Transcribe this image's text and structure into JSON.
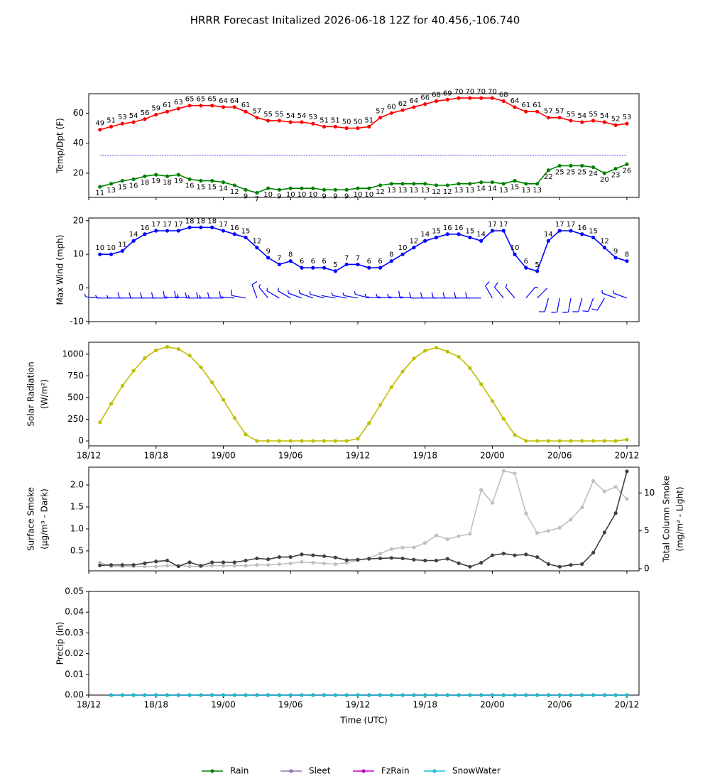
{
  "title": "HRRR Forecast Initalized 2026-06-18 12Z for 40.456,-106.740",
  "x_axis": {
    "label": "Time (UTC)",
    "x": [
      1,
      2,
      3,
      4,
      5,
      6,
      7,
      8,
      9,
      10,
      11,
      12,
      13,
      14,
      15,
      16,
      17,
      18,
      19,
      20,
      21,
      22,
      23,
      24,
      25,
      26,
      27,
      28,
      29,
      30,
      31,
      32,
      33,
      34,
      35,
      36,
      37,
      38,
      39,
      40,
      41,
      42,
      43,
      44,
      45,
      46,
      47,
      48
    ],
    "xlim": [
      0,
      49.08
    ],
    "xticks": [
      {
        "value": 0,
        "label": "18/12"
      },
      {
        "value": 6,
        "label": "18/18"
      },
      {
        "value": 12,
        "label": "19/00"
      },
      {
        "value": 18,
        "label": "19/06"
      },
      {
        "value": 24,
        "label": "19/12"
      },
      {
        "value": 30,
        "label": "19/18"
      },
      {
        "value": 36,
        "label": "20/00"
      },
      {
        "value": 42,
        "label": "20/06"
      },
      {
        "value": 48,
        "label": "20/12"
      }
    ]
  },
  "chart_data": [
    {
      "type": "line",
      "ylabel": "Temp/Dpt (F)",
      "ylim": [
        3.95,
        72.9
      ],
      "yticks": [
        20,
        40,
        60
      ],
      "reference_line": {
        "value": 32,
        "color": "#0000ff"
      },
      "series": [
        {
          "color": "#ff0000",
          "label_position": "above",
          "values": [
            49,
            51,
            53,
            54,
            56,
            59,
            61,
            63,
            65,
            65,
            65,
            64,
            64,
            61,
            57,
            55,
            55,
            54,
            54,
            53,
            51,
            51,
            50,
            50,
            51,
            57,
            60,
            62,
            64,
            66,
            68,
            69,
            70,
            70,
            70,
            70,
            68,
            64,
            61,
            61,
            57,
            57,
            55,
            54,
            55,
            54,
            52,
            53
          ]
        },
        {
          "color": "#008000",
          "label_position": "below",
          "values": [
            11,
            13,
            15,
            16,
            18,
            19,
            18,
            19,
            16,
            15,
            15,
            14,
            12,
            9,
            7,
            10,
            9,
            10,
            10,
            10,
            9,
            9,
            9,
            10,
            10,
            12,
            13,
            13,
            13,
            13,
            12,
            12,
            13,
            13,
            14,
            14,
            13,
            15,
            13,
            13,
            22,
            25,
            25,
            25,
            24,
            20,
            23,
            26
          ]
        }
      ]
    },
    {
      "type": "line",
      "ylabel": "Max Wind (mph)",
      "ylim": [
        -10,
        20.8
      ],
      "yticks": [
        -10,
        0,
        10,
        20
      ],
      "barb_level": -3,
      "series": [
        {
          "color": "#0000ff",
          "label_position": "above",
          "values": [
            10,
            10,
            11,
            14,
            16,
            17,
            17,
            17,
            18,
            18,
            18,
            17,
            16,
            15,
            12,
            9,
            7,
            8,
            6,
            6,
            6,
            5,
            7,
            7,
            6,
            6,
            8,
            10,
            12,
            14,
            15,
            16,
            16,
            15,
            14,
            17,
            17,
            10,
            6,
            5,
            14,
            17,
            17,
            16,
            15,
            12,
            9,
            8
          ],
          "barb_directions": [
            275,
            270,
            270,
            270,
            270,
            270,
            270,
            275,
            275,
            270,
            270,
            270,
            275,
            280,
            340,
            320,
            300,
            300,
            290,
            290,
            285,
            280,
            280,
            280,
            285,
            275,
            275,
            275,
            275,
            270,
            270,
            270,
            270,
            270,
            270,
            330,
            320,
            320,
            40,
            45,
            195,
            190,
            190,
            195,
            200,
            210,
            290,
            290
          ]
        }
      ]
    },
    {
      "type": "line",
      "ylabel": [
        "Solar Radiation",
        "(W/m²)"
      ],
      "ylim": [
        -57,
        1138
      ],
      "yticks": [
        0,
        250,
        500,
        750,
        1000
      ],
      "xtick_labels": true,
      "series": [
        {
          "color": "#bfbf00",
          "values": [
            215,
            430,
            635,
            810,
            955,
            1045,
            1085,
            1060,
            985,
            850,
            675,
            475,
            265,
            75,
            0,
            0,
            0,
            0,
            0,
            0,
            0,
            0,
            0,
            25,
            205,
            415,
            620,
            800,
            950,
            1040,
            1075,
            1030,
            970,
            840,
            655,
            460,
            255,
            70,
            0,
            0,
            0,
            0,
            0,
            0,
            0,
            0,
            0,
            15
          ]
        }
      ]
    },
    {
      "type": "line",
      "ylabel": [
        "Surface Smoke",
        "(μg/m³ - Dark)"
      ],
      "y2label": [
        "Total Column Smoke",
        "(mg/m² - Light)"
      ],
      "ylim": [
        0.046,
        2.405
      ],
      "yticks": [
        0.5,
        {
          "value": 1.0,
          "label": "1.0"
        },
        1.5,
        {
          "value": 2.0,
          "label": "2.0"
        }
      ],
      "y2lim": [
        -0.28,
        13.4
      ],
      "y2ticks": [
        0,
        5,
        10
      ],
      "series": [
        {
          "color": "#c0c0c0",
          "axis": "y2",
          "values": [
            0.8,
            0.3,
            0.3,
            0.3,
            0.3,
            0.3,
            0.4,
            0.4,
            0.3,
            0.3,
            0.4,
            0.4,
            0.4,
            0.4,
            0.5,
            0.5,
            0.6,
            0.7,
            0.9,
            0.8,
            0.7,
            0.6,
            0.8,
            1.1,
            1.4,
            2.0,
            2.6,
            2.8,
            2.8,
            3.4,
            4.4,
            3.9,
            4.3,
            4.6,
            10.4,
            8.7,
            12.9,
            12.6,
            7.3,
            4.7,
            5.0,
            5.4,
            6.5,
            8.1,
            11.6,
            10.2,
            10.8,
            9.2
          ]
        },
        {
          "color": "#404040",
          "values": [
            0.17,
            0.18,
            0.18,
            0.18,
            0.22,
            0.26,
            0.28,
            0.15,
            0.24,
            0.16,
            0.24,
            0.24,
            0.24,
            0.28,
            0.33,
            0.31,
            0.36,
            0.36,
            0.42,
            0.4,
            0.38,
            0.35,
            0.29,
            0.3,
            0.32,
            0.33,
            0.34,
            0.33,
            0.3,
            0.28,
            0.28,
            0.32,
            0.22,
            0.14,
            0.23,
            0.4,
            0.44,
            0.4,
            0.42,
            0.36,
            0.2,
            0.14,
            0.18,
            0.2,
            0.46,
            0.92,
            1.36,
            2.31
          ]
        }
      ]
    },
    {
      "type": "line",
      "ylabel": "Precip (in)",
      "ylim": [
        0,
        0.05
      ],
      "xtick_labels": true,
      "xlabel": true,
      "legend": "lower center",
      "yticks": [
        {
          "value": 0,
          "label": "0.00"
        },
        {
          "value": 0.01,
          "label": "0.01"
        },
        {
          "value": 0.02,
          "label": "0.02"
        },
        {
          "value": 0.03,
          "label": "0.03"
        },
        {
          "value": 0.04,
          "label": "0.04"
        },
        {
          "value": 0.05,
          "label": "0.05"
        }
      ],
      "series": [
        {
          "name": "Rain",
          "color": "#008000",
          "values": [
            null,
            0,
            0,
            0,
            0,
            0,
            0,
            0,
            0,
            0,
            0,
            0,
            0,
            0,
            0,
            0,
            0,
            0,
            0,
            0,
            0,
            0,
            0,
            0,
            0,
            0,
            0,
            0,
            0,
            0,
            0,
            0,
            0,
            0,
            0,
            0,
            0,
            0,
            0,
            0,
            0,
            0,
            0,
            0,
            0,
            0,
            0,
            0
          ]
        },
        {
          "name": "Sleet",
          "color": "#8c75a8",
          "values": [
            null,
            0,
            0,
            0,
            0,
            0,
            0,
            0,
            0,
            0,
            0,
            0,
            0,
            0,
            0,
            0,
            0,
            0,
            0,
            0,
            0,
            0,
            0,
            0,
            0,
            0,
            0,
            0,
            0,
            0,
            0,
            0,
            0,
            0,
            0,
            0,
            0,
            0,
            0,
            0,
            0,
            0,
            0,
            0,
            0,
            0,
            0,
            0
          ]
        },
        {
          "name": "FzRain",
          "color": "#c000c0",
          "values": [
            null,
            0,
            0,
            0,
            0,
            0,
            0,
            0,
            0,
            0,
            0,
            0,
            0,
            0,
            0,
            0,
            0,
            0,
            0,
            0,
            0,
            0,
            0,
            0,
            0,
            0,
            0,
            0,
            0,
            0,
            0,
            0,
            0,
            0,
            0,
            0,
            0,
            0,
            0,
            0,
            0,
            0,
            0,
            0,
            0,
            0,
            0,
            0
          ]
        },
        {
          "name": "SnowWater",
          "color": "#17becf",
          "values": [
            null,
            0,
            0,
            0,
            0,
            0,
            0,
            0,
            0,
            0,
            0,
            0,
            0,
            0,
            0,
            0,
            0,
            0,
            0,
            0,
            0,
            0,
            0,
            0,
            0,
            0,
            0,
            0,
            0,
            0,
            0,
            0,
            0,
            0,
            0,
            0,
            0,
            0,
            0,
            0,
            0,
            0,
            0,
            0,
            0,
            0,
            0,
            0
          ]
        }
      ]
    }
  ]
}
